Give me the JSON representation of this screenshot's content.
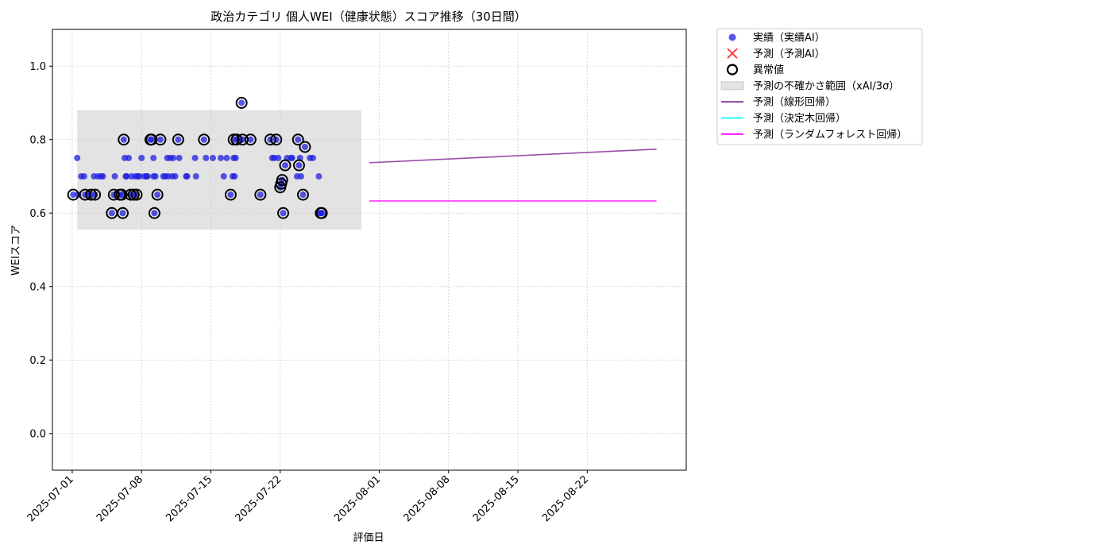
{
  "chart_data": {
    "type": "scatter",
    "title": "政治カテゴリ 個人WEI（健康状態）スコア推移（30日間）",
    "xlabel": "評価日",
    "ylabel": "WEIスコア",
    "xlim": [
      "2025-06-29",
      "2025-09-01"
    ],
    "ylim": [
      -0.1,
      1.1
    ],
    "grid": true,
    "legend_position": "outside-right",
    "x_ticks": [
      "2025-07-01",
      "2025-07-08",
      "2025-07-15",
      "2025-07-22",
      "2025-08-01",
      "2025-08-08",
      "2025-08-15",
      "2025-08-22"
    ],
    "y_ticks": [
      0.0,
      0.2,
      0.4,
      0.6,
      0.8,
      1.0
    ],
    "colors": {
      "actual": "#1f1fe0",
      "predicted_marker": "#ff3030",
      "anomaly": "#000000",
      "band": "#c8c8c8",
      "linear": "#8b2a9c",
      "decision_tree": "#00ffff",
      "random_forest": "#ff00ff"
    },
    "legend": [
      {
        "key": "actual",
        "label": "実績（実績AI）",
        "icon": "dot"
      },
      {
        "key": "predicted_marker",
        "label": "予測（予測AI）",
        "icon": "x-mark"
      },
      {
        "key": "anomaly",
        "label": "異常値",
        "icon": "ring"
      },
      {
        "key": "band",
        "label": "予測の不確かさ範囲（xAI/3σ）",
        "icon": "patch"
      },
      {
        "key": "linear",
        "label": "予測（線形回帰）",
        "icon": "line"
      },
      {
        "key": "decision_tree",
        "label": "予測（決定木回帰）",
        "icon": "line"
      },
      {
        "key": "random_forest",
        "label": "予測（ランダムフォレスト回帰）",
        "icon": "line"
      }
    ],
    "uncertainty_band": {
      "x_start": "2025-07-01.5",
      "x_end": "2025-07-30.2",
      "y_low": 0.555,
      "y_high": 0.88
    },
    "series": [
      {
        "key": "actual",
        "points": [
          [
            0.1,
            0.65
          ],
          [
            0.5,
            0.75
          ],
          [
            0.6,
            0.65
          ],
          [
            0.9,
            0.7
          ],
          [
            1.2,
            0.7
          ],
          [
            1.3,
            0.65
          ],
          [
            1.6,
            0.65
          ],
          [
            1.9,
            0.65
          ],
          [
            2.2,
            0.7
          ],
          [
            2.3,
            0.65
          ],
          [
            2.6,
            0.7
          ],
          [
            2.9,
            0.7
          ],
          [
            3.1,
            0.7
          ],
          [
            4.0,
            0.6
          ],
          [
            4.2,
            0.65
          ],
          [
            4.3,
            0.7
          ],
          [
            4.8,
            0.65
          ],
          [
            5.0,
            0.65
          ],
          [
            5.1,
            0.6
          ],
          [
            5.2,
            0.8
          ],
          [
            5.3,
            0.75
          ],
          [
            5.4,
            0.7
          ],
          [
            5.5,
            0.7
          ],
          [
            5.7,
            0.75
          ],
          [
            5.9,
            0.65
          ],
          [
            6.0,
            0.7
          ],
          [
            6.2,
            0.65
          ],
          [
            6.4,
            0.7
          ],
          [
            6.5,
            0.65
          ],
          [
            6.6,
            0.7
          ],
          [
            6.8,
            0.7
          ],
          [
            7.0,
            0.75
          ],
          [
            7.3,
            0.7
          ],
          [
            7.5,
            0.7
          ],
          [
            7.6,
            0.7
          ],
          [
            7.9,
            0.8
          ],
          [
            8.0,
            0.8
          ],
          [
            8.2,
            0.75
          ],
          [
            8.2,
            0.7
          ],
          [
            8.3,
            0.6
          ],
          [
            8.4,
            0.7
          ],
          [
            8.6,
            0.65
          ],
          [
            8.9,
            0.8
          ],
          [
            9.2,
            0.7
          ],
          [
            9.4,
            0.7
          ],
          [
            9.6,
            0.75
          ],
          [
            9.7,
            0.7
          ],
          [
            9.9,
            0.75
          ],
          [
            10.1,
            0.7
          ],
          [
            10.2,
            0.75
          ],
          [
            10.4,
            0.7
          ],
          [
            10.7,
            0.8
          ],
          [
            10.8,
            0.75
          ],
          [
            11.5,
            0.7
          ],
          [
            11.6,
            0.7
          ],
          [
            12.4,
            0.75
          ],
          [
            12.5,
            0.7
          ],
          [
            13.3,
            0.8
          ],
          [
            13.5,
            0.75
          ],
          [
            14.2,
            0.75
          ],
          [
            15.0,
            0.75
          ],
          [
            15.3,
            0.7
          ],
          [
            15.6,
            0.75
          ],
          [
            16.0,
            0.65
          ],
          [
            16.2,
            0.7
          ],
          [
            16.3,
            0.75
          ],
          [
            16.3,
            0.8
          ],
          [
            16.4,
            0.7
          ],
          [
            16.5,
            0.75
          ],
          [
            16.6,
            0.8
          ],
          [
            16.9,
            0.8
          ],
          [
            17.1,
            0.9
          ],
          [
            17.2,
            0.8
          ],
          [
            18.0,
            0.8
          ],
          [
            19.0,
            0.65
          ],
          [
            20.0,
            0.8
          ],
          [
            20.2,
            0.75
          ],
          [
            20.4,
            0.75
          ],
          [
            20.6,
            0.8
          ],
          [
            20.8,
            0.75
          ],
          [
            21.0,
            0.67
          ],
          [
            21.1,
            0.68
          ],
          [
            21.2,
            0.69
          ],
          [
            21.3,
            0.6
          ],
          [
            21.5,
            0.73
          ],
          [
            21.7,
            0.75
          ],
          [
            22.1,
            0.75
          ],
          [
            22.2,
            0.75
          ],
          [
            22.7,
            0.7
          ],
          [
            22.8,
            0.8
          ],
          [
            22.9,
            0.73
          ],
          [
            23.0,
            0.75
          ],
          [
            23.1,
            0.7
          ],
          [
            23.3,
            0.65
          ],
          [
            23.5,
            0.78
          ],
          [
            24.0,
            0.75
          ],
          [
            24.3,
            0.75
          ],
          [
            24.9,
            0.7
          ],
          [
            25.0,
            0.6
          ],
          [
            25.1,
            0.6
          ],
          [
            25.2,
            0.6
          ]
        ]
      },
      {
        "key": "anomaly",
        "points": [
          [
            0.1,
            0.65
          ],
          [
            1.3,
            0.65
          ],
          [
            1.9,
            0.65
          ],
          [
            2.3,
            0.65
          ],
          [
            4.0,
            0.6
          ],
          [
            4.2,
            0.65
          ],
          [
            4.8,
            0.65
          ],
          [
            5.0,
            0.65
          ],
          [
            5.1,
            0.6
          ],
          [
            5.2,
            0.8
          ],
          [
            5.9,
            0.65
          ],
          [
            6.2,
            0.65
          ],
          [
            6.5,
            0.65
          ],
          [
            7.9,
            0.8
          ],
          [
            8.0,
            0.8
          ],
          [
            8.3,
            0.6
          ],
          [
            8.6,
            0.65
          ],
          [
            8.9,
            0.8
          ],
          [
            10.7,
            0.8
          ],
          [
            13.3,
            0.8
          ],
          [
            16.0,
            0.65
          ],
          [
            16.3,
            0.8
          ],
          [
            16.6,
            0.8
          ],
          [
            17.1,
            0.9
          ],
          [
            17.2,
            0.8
          ],
          [
            18.0,
            0.8
          ],
          [
            19.0,
            0.65
          ],
          [
            20.0,
            0.8
          ],
          [
            20.6,
            0.8
          ],
          [
            21.0,
            0.67
          ],
          [
            21.1,
            0.68
          ],
          [
            21.2,
            0.69
          ],
          [
            21.3,
            0.6
          ],
          [
            21.5,
            0.73
          ],
          [
            22.8,
            0.8
          ],
          [
            22.9,
            0.73
          ],
          [
            23.3,
            0.65
          ],
          [
            23.5,
            0.78
          ],
          [
            25.1,
            0.6
          ],
          [
            25.2,
            0.6
          ]
        ]
      },
      {
        "key": "linear",
        "line": [
          [
            "2025-07-31",
            0.737
          ],
          [
            "2025-08-29",
            0.774
          ]
        ]
      },
      {
        "key": "random_forest",
        "line": [
          [
            "2025-07-31",
            0.633
          ],
          [
            "2025-08-29",
            0.633
          ]
        ]
      },
      {
        "key": "decision_tree",
        "line": [
          [
            "2025-07-31",
            0.633
          ],
          [
            "2025-08-29",
            0.633
          ]
        ]
      }
    ]
  }
}
